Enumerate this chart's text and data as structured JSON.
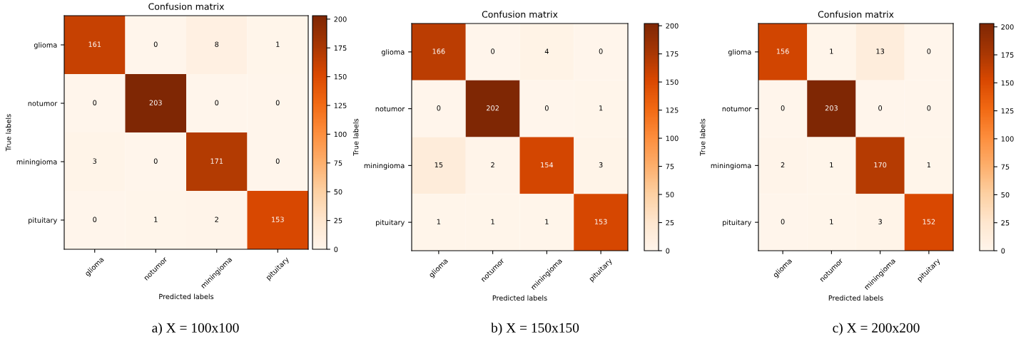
{
  "chart_data": [
    {
      "type": "heatmap",
      "title": "Confusion matrix",
      "xlabel": "Predicted labels",
      "ylabel": "True labels",
      "categories": [
        "glioma",
        "notumor",
        "miningioma",
        "pituitary"
      ],
      "y_categories": [
        "glioma",
        "notumor",
        "miningioma",
        "pituitary"
      ],
      "cells": [
        [
          161,
          0,
          8,
          1
        ],
        [
          0,
          203,
          0,
          0
        ],
        [
          3,
          0,
          171,
          0
        ],
        [
          0,
          1,
          2,
          153
        ]
      ],
      "data_labels": true,
      "clim": [
        0,
        203
      ],
      "cticks": [
        0,
        25,
        50,
        75,
        100,
        125,
        150,
        175,
        200
      ],
      "annotations": [
        "a) X = 100x100"
      ]
    },
    {
      "type": "heatmap",
      "title": "Confusion matrix",
      "xlabel": "Predicted labels",
      "ylabel": "True labels",
      "categories": [
        "glioma",
        "notumor",
        "miningioma",
        "pituitary"
      ],
      "y_categories": [
        "glioma",
        "notumor",
        "miningioma",
        "pituitary"
      ],
      "cells": [
        [
          166,
          0,
          4,
          0
        ],
        [
          0,
          202,
          0,
          1
        ],
        [
          15,
          2,
          154,
          3
        ],
        [
          1,
          1,
          1,
          153
        ]
      ],
      "data_labels": true,
      "clim": [
        0,
        202
      ],
      "cticks": [
        0,
        25,
        50,
        75,
        100,
        125,
        150,
        175,
        200
      ],
      "annotations": [
        "b) X = 150x150"
      ]
    },
    {
      "type": "heatmap",
      "title": "Confusion matrix",
      "xlabel": "Predicted labels",
      "ylabel": "True labels",
      "categories": [
        "glioma",
        "notumor",
        "miningioma",
        "pituitary"
      ],
      "y_categories": [
        "glioma",
        "notumor",
        "miningioma",
        "pituitary"
      ],
      "cells": [
        [
          156,
          1,
          13,
          0
        ],
        [
          0,
          203,
          0,
          0
        ],
        [
          2,
          1,
          170,
          1
        ],
        [
          0,
          1,
          3,
          152
        ]
      ],
      "data_labels": true,
      "clim": [
        0,
        203
      ],
      "cticks": [
        0,
        25,
        50,
        75,
        100,
        125,
        150,
        175,
        200
      ],
      "annotations": [
        "c) X = 200x200"
      ]
    }
  ]
}
